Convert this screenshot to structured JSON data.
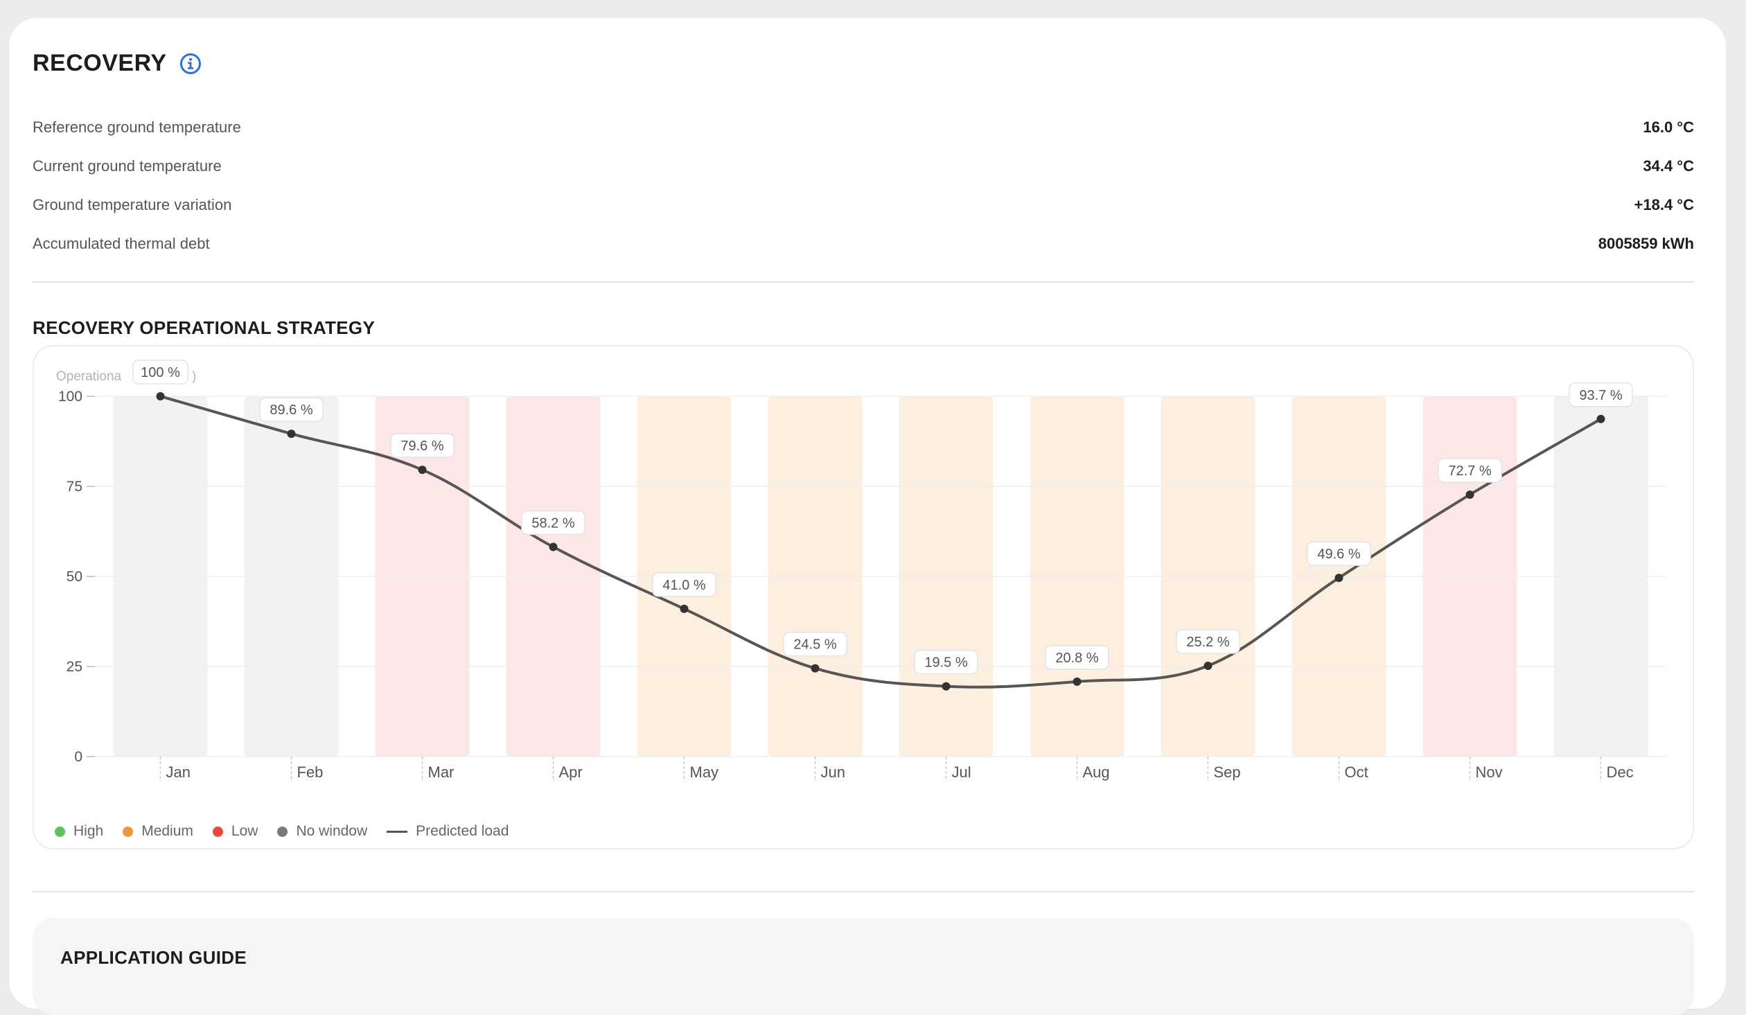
{
  "header": {
    "title": "RECOVERY"
  },
  "stats": [
    {
      "label": "Reference ground temperature",
      "value": "16.0 °C"
    },
    {
      "label": "Current ground temperature",
      "value": "34.4 °C"
    },
    {
      "label": "Ground temperature variation",
      "value": "+18.4 °C"
    },
    {
      "label": "Accumulated thermal debt",
      "value": "8005859 kWh"
    }
  ],
  "strategy": {
    "title": "RECOVERY OPERATIONAL STRATEGY"
  },
  "colors": {
    "high": "#5cc25a",
    "medium": "#f0973a",
    "low": "#e8473e",
    "no_window": "#7a7a7a",
    "line": "#5a5555",
    "band_no_window": "#f2f2f2",
    "band_medium": "#fcefdf",
    "band_low": "#fce6e6",
    "info_icon": "#2f6fdc"
  },
  "chart_data": {
    "type": "line",
    "ylabel": "Operationa",
    "ylabel_suffix": ")",
    "ylim": [
      0,
      100
    ],
    "yticks": [
      "0",
      "25",
      "50",
      "75",
      "100"
    ],
    "categories": [
      "Jan",
      "Feb",
      "Mar",
      "Apr",
      "May",
      "Jun",
      "Jul",
      "Aug",
      "Sep",
      "Oct",
      "Nov",
      "Dec"
    ],
    "series": [
      {
        "name": "Predicted load",
        "values": [
          100,
          89.6,
          79.6,
          58.2,
          41.0,
          24.5,
          19.5,
          20.8,
          25.2,
          49.6,
          72.7,
          93.7
        ],
        "labels": [
          "100 %",
          "89.6 %",
          "79.6 %",
          "58.2 %",
          "41.0 %",
          "24.5 %",
          "19.5 %",
          "20.8 %",
          "25.2 %",
          "49.6 %",
          "72.7 %",
          "93.7 %"
        ]
      }
    ],
    "windows": [
      "No window",
      "No window",
      "Low",
      "Low",
      "Medium",
      "Medium",
      "Medium",
      "Medium",
      "Medium",
      "Medium",
      "Low",
      "No window"
    ],
    "grid": true,
    "legend_position": "bottom-left"
  },
  "legend": {
    "high": "High",
    "medium": "Medium",
    "low": "Low",
    "no_window": "No window",
    "predicted_load": "Predicted load"
  },
  "guide": {
    "title": "APPLICATION GUIDE"
  }
}
